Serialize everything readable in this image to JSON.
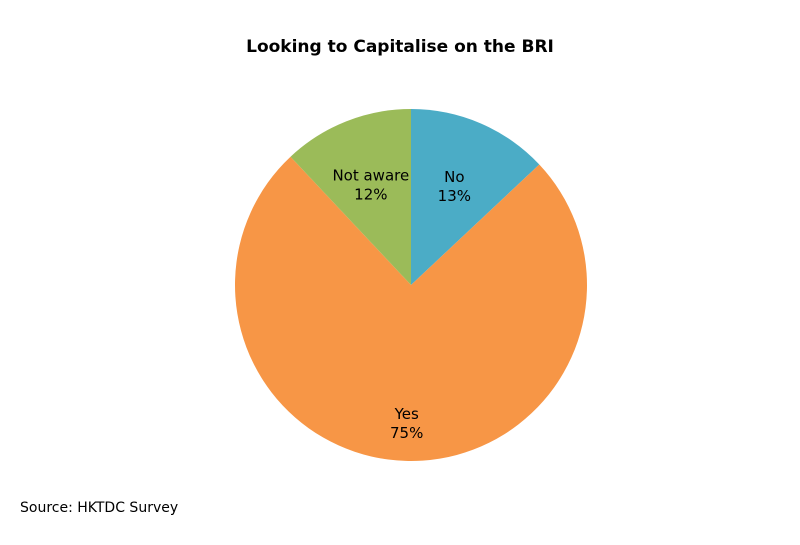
{
  "chart_data": {
    "type": "pie",
    "title": "Looking to Capitalise on the BRI",
    "slices": [
      {
        "label": "No",
        "value": 13,
        "value_label": "13%",
        "color": "#4bacc6"
      },
      {
        "label": "Yes",
        "value": 75,
        "value_label": "75%",
        "color": "#f79646"
      },
      {
        "label": "Not aware",
        "value": 12,
        "value_label": "12%",
        "color": "#9bbb59"
      }
    ],
    "start": "12 o'clock",
    "direction": "clockwise",
    "legend": "none",
    "data_labels": "inside"
  },
  "source": "Source: HKTDC Survey"
}
